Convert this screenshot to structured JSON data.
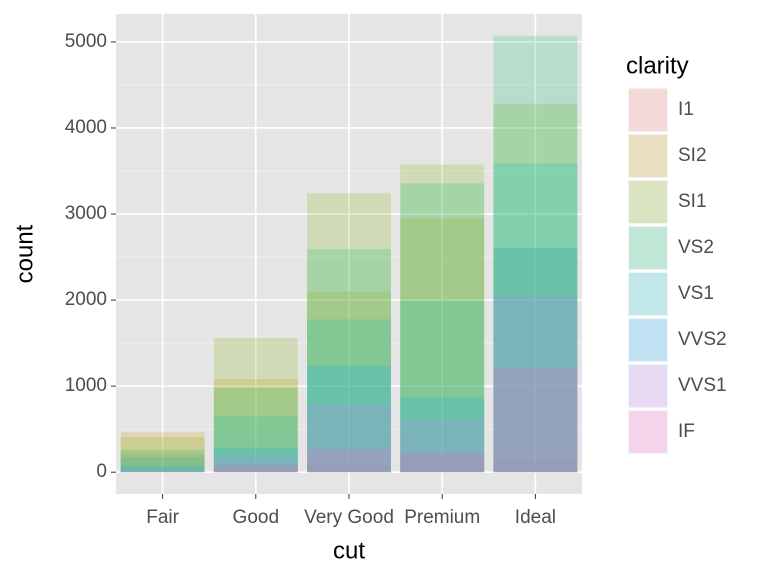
{
  "chart_data": {
    "type": "bar",
    "x_label": "cut",
    "y_label": "count",
    "legend_title": "clarity",
    "categories": [
      "Fair",
      "Good",
      "Very Good",
      "Premium",
      "Ideal"
    ],
    "series": [
      {
        "name": "I1",
        "color": "#F8766D",
        "values": [
          210,
          96,
          84,
          205,
          146
        ]
      },
      {
        "name": "SI2",
        "color": "#CD9600",
        "values": [
          466,
          1081,
          2100,
          2949,
          2598
        ]
      },
      {
        "name": "SI1",
        "color": "#7CAE00",
        "values": [
          408,
          1560,
          3240,
          3575,
          4282
        ]
      },
      {
        "name": "VS2",
        "color": "#00BE67",
        "values": [
          261,
          978,
          2591,
          3357,
          5071
        ]
      },
      {
        "name": "VS1",
        "color": "#00BFC4",
        "values": [
          170,
          648,
          1775,
          1989,
          3589
        ]
      },
      {
        "name": "VVS2",
        "color": "#00A9FF",
        "values": [
          69,
          286,
          1235,
          870,
          2606
        ]
      },
      {
        "name": "VVS1",
        "color": "#C77CFF",
        "values": [
          17,
          186,
          789,
          616,
          2047
        ]
      },
      {
        "name": "IF",
        "color": "#FF61CC",
        "values": [
          9,
          71,
          268,
          230,
          1212
        ]
      }
    ],
    "ylim": [
      -253.55,
      5324.55
    ],
    "yticks": [
      0,
      1000,
      2000,
      3000,
      4000,
      5000
    ],
    "grid": true,
    "alpha": 0.2
  }
}
